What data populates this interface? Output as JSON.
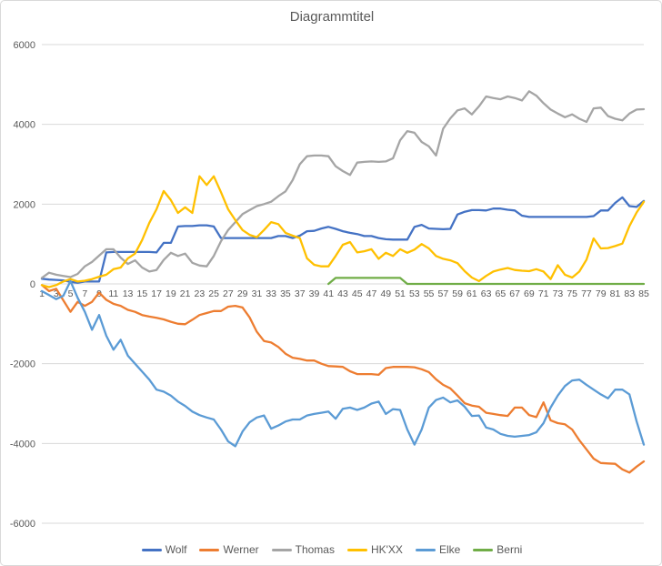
{
  "chart_data": {
    "type": "line",
    "title": "Diagrammtitel",
    "xlabel": "",
    "ylabel": "",
    "x_start": 1,
    "x_end": 85,
    "x_ticks": [
      1,
      3,
      5,
      7,
      9,
      11,
      13,
      15,
      17,
      19,
      21,
      23,
      25,
      27,
      29,
      31,
      33,
      35,
      37,
      39,
      41,
      43,
      45,
      47,
      49,
      51,
      53,
      55,
      57,
      59,
      61,
      63,
      65,
      67,
      69,
      71,
      73,
      75,
      77,
      79,
      81,
      83,
      85
    ],
    "y_ticks": [
      -6000,
      -4000,
      -2000,
      0,
      2000,
      4000,
      6000
    ],
    "ylim": [
      -6000,
      6000
    ],
    "grid": true,
    "legend_position": "bottom",
    "series": [
      {
        "name": "Wolf",
        "color": "#4472C4",
        "values": [
          130,
          110,
          100,
          90,
          50,
          30,
          60,
          60,
          60,
          790,
          800,
          800,
          800,
          800,
          800,
          800,
          790,
          1030,
          1030,
          1440,
          1450,
          1450,
          1470,
          1470,
          1440,
          1150,
          1150,
          1150,
          1150,
          1150,
          1150,
          1150,
          1150,
          1200,
          1200,
          1150,
          1210,
          1320,
          1330,
          1390,
          1430,
          1380,
          1320,
          1280,
          1250,
          1200,
          1200,
          1150,
          1120,
          1110,
          1110,
          1110,
          1430,
          1480,
          1390,
          1380,
          1370,
          1380,
          1740,
          1810,
          1850,
          1850,
          1840,
          1890,
          1890,
          1860,
          1840,
          1710,
          1680,
          1680,
          1680,
          1680,
          1680,
          1680,
          1680,
          1680,
          1680,
          1700,
          1840,
          1840,
          2030,
          2170,
          1950,
          1930,
          2080
        ]
      },
      {
        "name": "Werner",
        "color": "#ED7D31",
        "values": [
          -30,
          -180,
          -120,
          -410,
          -700,
          -450,
          -550,
          -450,
          -220,
          -400,
          -500,
          -550,
          -650,
          -700,
          -780,
          -820,
          -850,
          -890,
          -950,
          -1000,
          -1010,
          -900,
          -780,
          -730,
          -680,
          -680,
          -570,
          -550,
          -590,
          -840,
          -1200,
          -1430,
          -1470,
          -1580,
          -1750,
          -1850,
          -1880,
          -1920,
          -1920,
          -2000,
          -2060,
          -2070,
          -2080,
          -2190,
          -2260,
          -2260,
          -2260,
          -2280,
          -2110,
          -2080,
          -2080,
          -2080,
          -2090,
          -2140,
          -2210,
          -2390,
          -2530,
          -2620,
          -2800,
          -2990,
          -3050,
          -3080,
          -3230,
          -3260,
          -3290,
          -3310,
          -3100,
          -3100,
          -3290,
          -3340,
          -2970,
          -3420,
          -3490,
          -3520,
          -3650,
          -3920,
          -4150,
          -4380,
          -4490,
          -4500,
          -4510,
          -4650,
          -4730,
          -4580,
          -4450
        ]
      },
      {
        "name": "Thomas",
        "color": "#A5A5A5",
        "values": [
          150,
          280,
          230,
          200,
          170,
          250,
          440,
          550,
          710,
          870,
          870,
          660,
          500,
          590,
          410,
          310,
          350,
          600,
          780,
          700,
          760,
          530,
          460,
          440,
          700,
          1070,
          1350,
          1550,
          1750,
          1850,
          1950,
          2000,
          2060,
          2200,
          2320,
          2600,
          3000,
          3200,
          3220,
          3220,
          3200,
          2950,
          2830,
          2730,
          3040,
          3060,
          3070,
          3060,
          3070,
          3150,
          3600,
          3830,
          3790,
          3560,
          3450,
          3220,
          3890,
          4150,
          4350,
          4400,
          4250,
          4450,
          4700,
          4660,
          4630,
          4700,
          4660,
          4600,
          4830,
          4720,
          4530,
          4370,
          4270,
          4180,
          4250,
          4140,
          4060,
          4400,
          4420,
          4210,
          4140,
          4100,
          4270,
          4370,
          4380
        ]
      },
      {
        "name": "HK'XX",
        "color": "#FFC000",
        "values": [
          -30,
          -80,
          -30,
          60,
          120,
          60,
          80,
          120,
          180,
          230,
          370,
          410,
          640,
          760,
          1100,
          1530,
          1870,
          2330,
          2100,
          1780,
          1920,
          1780,
          2700,
          2480,
          2700,
          2300,
          1870,
          1600,
          1350,
          1230,
          1170,
          1350,
          1550,
          1500,
          1280,
          1210,
          1150,
          640,
          480,
          440,
          440,
          700,
          980,
          1050,
          790,
          820,
          870,
          630,
          780,
          700,
          870,
          780,
          860,
          1000,
          890,
          700,
          630,
          590,
          520,
          320,
          160,
          70,
          200,
          310,
          360,
          400,
          350,
          330,
          320,
          370,
          310,
          120,
          470,
          230,
          160,
          310,
          610,
          1140,
          890,
          900,
          950,
          1010,
          1450,
          1790,
          2060
        ]
      },
      {
        "name": "Elke",
        "color": "#5B9BD5",
        "values": [
          -180,
          -280,
          -380,
          -300,
          70,
          -350,
          -700,
          -1150,
          -780,
          -1300,
          -1650,
          -1400,
          -1800,
          -2000,
          -2200,
          -2400,
          -2650,
          -2700,
          -2800,
          -2950,
          -3060,
          -3200,
          -3290,
          -3350,
          -3400,
          -3650,
          -3950,
          -4070,
          -3700,
          -3470,
          -3350,
          -3300,
          -3630,
          -3550,
          -3450,
          -3400,
          -3400,
          -3300,
          -3260,
          -3230,
          -3200,
          -3380,
          -3130,
          -3100,
          -3160,
          -3100,
          -3000,
          -2950,
          -3260,
          -3140,
          -3160,
          -3650,
          -4030,
          -3650,
          -3100,
          -2910,
          -2850,
          -2970,
          -2920,
          -3080,
          -3310,
          -3300,
          -3600,
          -3650,
          -3760,
          -3810,
          -3830,
          -3810,
          -3790,
          -3720,
          -3490,
          -3100,
          -2800,
          -2560,
          -2420,
          -2400,
          -2530,
          -2650,
          -2770,
          -2870,
          -2650,
          -2650,
          -2770,
          -3450,
          -4030
        ]
      },
      {
        "name": "Berni",
        "color": "#70AD47",
        "values": [
          null,
          null,
          null,
          null,
          null,
          null,
          null,
          null,
          null,
          null,
          null,
          null,
          null,
          null,
          null,
          null,
          null,
          null,
          null,
          null,
          null,
          null,
          null,
          null,
          null,
          null,
          null,
          null,
          null,
          null,
          null,
          null,
          null,
          null,
          null,
          null,
          null,
          null,
          null,
          null,
          0,
          150,
          150,
          150,
          150,
          150,
          150,
          150,
          150,
          150,
          150,
          0,
          0,
          0,
          0,
          0,
          0,
          0,
          0,
          0,
          0,
          0,
          0,
          0,
          0,
          0,
          0,
          0,
          0,
          0,
          0,
          0,
          0,
          0,
          0,
          0,
          0,
          0,
          0,
          0,
          0,
          0,
          0,
          0,
          0
        ]
      }
    ]
  },
  "style": {
    "text_color": "#595959",
    "grid_color": "#D9D9D9",
    "border_color": "#D9D9D9",
    "background": "#FFFFFF"
  }
}
